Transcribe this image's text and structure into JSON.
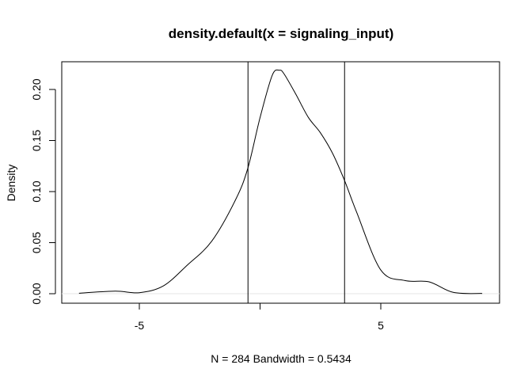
{
  "chart_data": {
    "type": "line",
    "title": "density.default(x = signaling_input)",
    "xlabel": "N = 284   Bandwidth = 0.5434",
    "ylabel": "Density",
    "xlim": [
      -7.5,
      9.2
    ],
    "ylim": [
      0,
      0.22
    ],
    "x_ticks": [
      -5,
      0,
      5
    ],
    "x_tick_labels": [
      "-5",
      "",
      "5"
    ],
    "y_ticks": [
      0.0,
      0.05,
      0.1,
      0.15,
      0.2
    ],
    "y_tick_labels": [
      "0.00",
      "0.05",
      "0.10",
      "0.15",
      "0.20"
    ],
    "grid": false,
    "vlines": [
      -0.5,
      3.5
    ],
    "hline": 0,
    "series": [
      {
        "x": [
          -6.0,
          -5.0,
          -4.0,
          -3.0,
          -2.0,
          -1.0,
          -0.5,
          0.0,
          0.5,
          0.8,
          1.0,
          1.5,
          2.0,
          2.5,
          3.0,
          3.5,
          4.0,
          5.0,
          6.0,
          7.0,
          8.0
        ],
        "y": [
          0.0025,
          0.001,
          0.0077,
          0.0283,
          0.0515,
          0.0927,
          0.1235,
          0.1725,
          0.2137,
          0.2188,
          0.215,
          0.1945,
          0.1726,
          0.1575,
          0.1376,
          0.1107,
          0.0798,
          0.0232,
          0.0129,
          0.0116,
          0.0013
        ]
      }
    ]
  }
}
